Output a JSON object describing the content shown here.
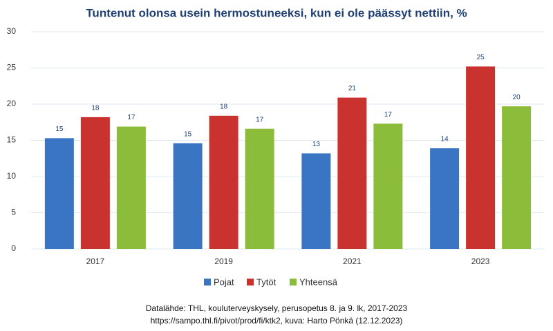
{
  "chart_data": {
    "type": "bar",
    "title": "Tuntenut olonsa usein hermostuneeksi, kun ei ole päässyt nettiin, %",
    "categories": [
      "2017",
      "2019",
      "2021",
      "2023"
    ],
    "series": [
      {
        "name": "Pojat",
        "color": "#3a75c4",
        "values": [
          15.3,
          14.6,
          13.2,
          13.9
        ],
        "value_labels": [
          "15",
          "15",
          "13",
          "14"
        ]
      },
      {
        "name": "Tytöt",
        "color": "#c9322f",
        "values": [
          18.2,
          18.4,
          20.9,
          25.2
        ],
        "value_labels": [
          "18",
          "18",
          "21",
          "25"
        ]
      },
      {
        "name": "Yhteensä",
        "color": "#8cbd3a",
        "values": [
          16.9,
          16.6,
          17.3,
          19.7
        ],
        "value_labels": [
          "17",
          "17",
          "17",
          "20"
        ]
      }
    ],
    "ylim": [
      0,
      30
    ],
    "yticks": [
      0,
      5,
      10,
      15,
      20,
      25,
      30
    ],
    "grid": true,
    "legend": "bottom",
    "source": [
      "Datalähde: THL, kouluterveyskysely, perusopetus 8. ja 9. lk, 2017-2023",
      "https://sampo.thl.fi/pivot/prod/fi/ktk2, kuva: Harto Pönkä (12.12.2023)"
    ]
  }
}
